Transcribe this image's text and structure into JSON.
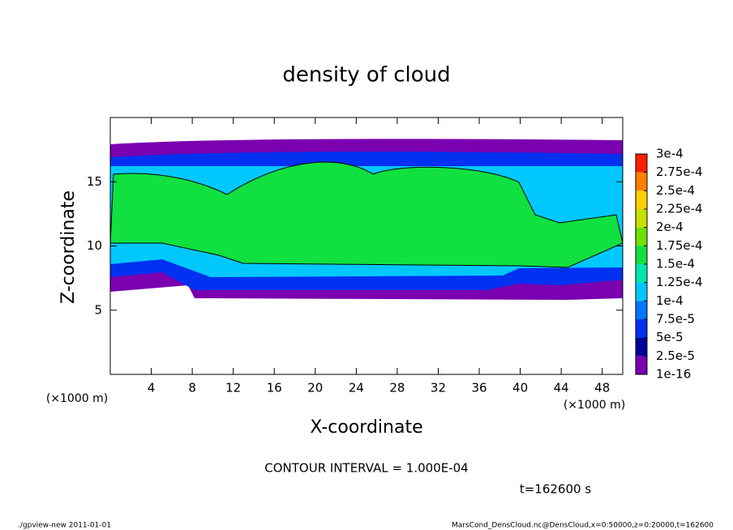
{
  "chart_data": {
    "type": "contour",
    "title": "density of cloud",
    "x_label": "X-coordinate",
    "y_label": "Z-coordinate",
    "x_unit": "(×1000 m)",
    "y_unit": "(×1000 m)",
    "xlim": [
      0,
      50
    ],
    "xticks": [
      4,
      8,
      12,
      16,
      20,
      24,
      28,
      32,
      36,
      40,
      44,
      48
    ],
    "ylim": [
      0,
      20
    ],
    "yticks": [
      5,
      10,
      15
    ],
    "contour_note": "CONTOUR INTERVAL = 1.000E-04",
    "time_label": "t=162600 s",
    "colorbar": {
      "levels": [
        {
          "value": 1e-16,
          "label": "1e-16"
        },
        {
          "value": 2.5e-05,
          "label": "2.5e-5"
        },
        {
          "value": 5e-05,
          "label": "5e-5"
        },
        {
          "value": 7.5e-05,
          "label": "7.5e-5"
        },
        {
          "value": 0.0001,
          "label": "1e-4"
        },
        {
          "value": 0.000125,
          "label": "1.25e-4"
        },
        {
          "value": 0.00015,
          "label": "1.5e-4"
        },
        {
          "value": 0.000175,
          "label": "1.75e-4"
        },
        {
          "value": 0.0002,
          "label": "2e-4"
        },
        {
          "value": 0.000225,
          "label": "2.25e-4"
        },
        {
          "value": 0.00025,
          "label": "2.5e-4"
        },
        {
          "value": 0.000275,
          "label": "2.75e-4"
        },
        {
          "value": 0.0003,
          "label": "3e-4"
        }
      ],
      "colors": [
        "#7a00b0",
        "#00009a",
        "#0030f0",
        "#0078ff",
        "#00c8ff",
        "#00e8b0",
        "#10e040",
        "#70e000",
        "#c8e000",
        "#ffd000",
        "#ff8000",
        "#ff2000",
        "#ff8080"
      ]
    },
    "footer_left": "./gpview-new  2011-01-01",
    "footer_right": "MarsCond_DensCloud.nc@DensCloud,x=0:50000,z=0:20000,t=162600"
  }
}
